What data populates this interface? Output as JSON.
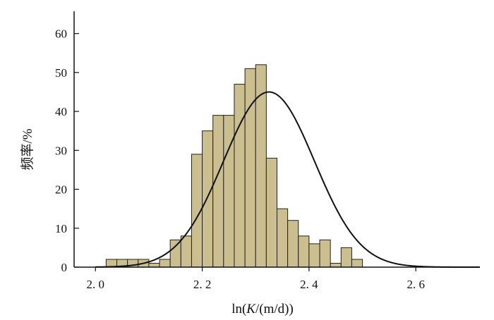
{
  "chart_data": {
    "type": "bar",
    "subtype": "histogram",
    "xlabel": "ln(K/(m/d))",
    "xlabel_parts": {
      "before": "ln(",
      "italic": "K",
      "after": "/(m/d))"
    },
    "ylabel": "频率/%",
    "xlim": [
      1.96,
      2.72
    ],
    "ylim": [
      0,
      65
    ],
    "xticks": [
      2.0,
      2.2,
      2.4,
      2.6
    ],
    "xtick_labels": [
      "2. 0",
      "2. 2",
      "2. 4",
      "2. 6"
    ],
    "yticks": [
      0,
      10,
      20,
      30,
      40,
      50,
      60
    ],
    "ytick_labels": [
      "0",
      "10",
      "20",
      "30",
      "40",
      "50",
      "60"
    ],
    "bin_width": 0.02,
    "bins": [
      {
        "start": 2.02,
        "value": 2
      },
      {
        "start": 2.04,
        "value": 2
      },
      {
        "start": 2.06,
        "value": 2
      },
      {
        "start": 2.08,
        "value": 2
      },
      {
        "start": 2.1,
        "value": 1
      },
      {
        "start": 2.12,
        "value": 2
      },
      {
        "start": 2.14,
        "value": 7
      },
      {
        "start": 2.16,
        "value": 8
      },
      {
        "start": 2.18,
        "value": 29
      },
      {
        "start": 2.2,
        "value": 35
      },
      {
        "start": 2.22,
        "value": 39
      },
      {
        "start": 2.24,
        "value": 39
      },
      {
        "start": 2.26,
        "value": 47
      },
      {
        "start": 2.28,
        "value": 51
      },
      {
        "start": 2.3,
        "value": 52
      },
      {
        "start": 2.32,
        "value": 28
      },
      {
        "start": 2.34,
        "value": 15
      },
      {
        "start": 2.36,
        "value": 12
      },
      {
        "start": 2.38,
        "value": 8
      },
      {
        "start": 2.4,
        "value": 6
      },
      {
        "start": 2.42,
        "value": 7
      },
      {
        "start": 2.44,
        "value": 1
      },
      {
        "start": 2.46,
        "value": 5
      },
      {
        "start": 2.48,
        "value": 2
      }
    ],
    "fit_curve": {
      "type": "normal",
      "mean": 2.325,
      "sd": 0.085,
      "peak": 45,
      "x_range": [
        2.0,
        2.72
      ]
    },
    "bar_color": "#cbbf8f",
    "bar_edge_color": "#222222",
    "curve_color": "#111111",
    "grid": false
  }
}
